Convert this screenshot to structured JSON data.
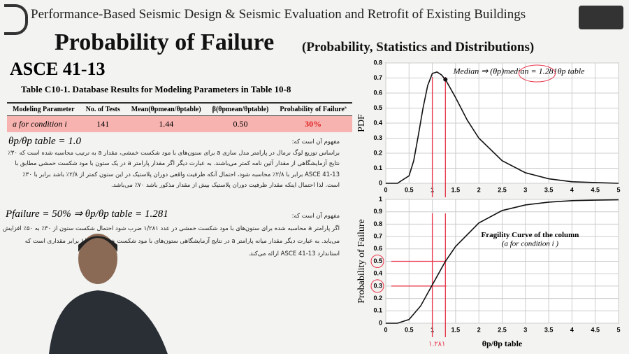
{
  "header": {
    "series_title": "Performance-Based Seismic Design & Seismic Evaluation and Retrofit of Existing Buildings",
    "title": "Probability of Failure",
    "subtitle": "(Probability, Statistics and Distributions)",
    "standard": "ASCE 41-13"
  },
  "table": {
    "caption": "Table C10-1. Database Results for Modeling Parameters in Table 10-8",
    "columns": [
      "Modeling Parameter",
      "No. of Tests",
      "Mean(θpmean/θptable)",
      "β(θpmean/θptable)",
      "Probability of Failureª"
    ],
    "rows": [
      [
        "a for condition i",
        "141",
        "1.44",
        "0.50",
        "30%"
      ]
    ]
  },
  "text": {
    "eq1": "θp/θp table = 1.0",
    "para1": [
      "مفهوم آن است که:",
      "براساس توزیع لوگ نرمال در پارامتر مدل سازی a برای ستون‌های با مود شکست خمشی، مقدار a به ترتیب محاسبه شده است که ۳۰٪",
      "نتایج آزمایشگاهی از مقدار آئین نامه کمتر می‌باشند. به عبارت دیگر اگر مقدار پارامتر a در یک ستون با مود شکست خمشی مطابق با",
      "ASCE 41-13 برابر با ۲/۸٪ محاسبه شود، احتمال آنکه ظرفیت واقعی دوران پلاستیک در این ستون کمتر از ۲/۸٪ باشد برابر با ۳۰٪",
      "است. لذا احتمال اینکه مقدار ظرفیت دوران پلاستیک بیش از مقدار مذکور باشد ۷۰٪ می‌باشد."
    ],
    "eq2": "Pfailure = 50% ⇒ θp/θp table = 1.281",
    "para2": [
      "مفهوم آن است که:",
      "اگر پارامتر a محاسبه شده برای ستون‌های با مود شکست خمشی در عدد ۱/۲۸۱ ضرب شود احتمال شکست ستون از ۳۰٪ به ۵۰٪ افزایش",
      "می‌یابد. به عبارت دیگر مقدار میانه پارامتر a در نتایج آزمایشگاهی ستون‌های با مود شکست خمشی ۱/۲۸۱ برابر مقداری است که",
      "استاندارد ASCE 41-13 ارائه می‌کند."
    ]
  },
  "chart_data": [
    {
      "type": "line",
      "ylabel": "PDF",
      "color": "#111111",
      "annotation": "Median ⇒ (θp)median = 1.281θp table",
      "x": [
        0,
        0.25,
        0.5,
        0.6,
        0.7,
        0.8,
        0.9,
        1.0,
        1.1,
        1.2,
        1.3,
        1.5,
        1.75,
        2,
        2.5,
        3,
        3.5,
        4,
        4.5,
        5
      ],
      "values": [
        0,
        0,
        0.05,
        0.15,
        0.32,
        0.5,
        0.65,
        0.73,
        0.74,
        0.72,
        0.68,
        0.57,
        0.42,
        0.3,
        0.15,
        0.07,
        0.03,
        0.01,
        0.005,
        0
      ],
      "marker": {
        "x": 1.281,
        "y": 0.69
      },
      "reference_x": [
        1,
        1.281
      ],
      "xlim": [
        0,
        5
      ],
      "ylim": [
        0,
        0.8
      ],
      "xticks": [
        0,
        0.5,
        1,
        1.5,
        2,
        2.5,
        3,
        3.5,
        4,
        4.5,
        5
      ],
      "yticks": [
        0,
        0.1,
        0.2,
        0.3,
        0.4,
        0.5,
        0.6,
        0.7,
        0.8
      ],
      "grid": true
    },
    {
      "type": "line",
      "ylabel": "Probability of Failure",
      "xlabel": "θp/θp table",
      "color": "#111111",
      "annotation": "Fragility Curve of the column",
      "annotation2": "(a for condition i )",
      "note": "۱.۲۸۱",
      "x": [
        0,
        0.25,
        0.5,
        0.75,
        1,
        1.281,
        1.5,
        2,
        2.5,
        3,
        3.5,
        4,
        4.5,
        5
      ],
      "values": [
        0,
        0,
        0.03,
        0.14,
        0.31,
        0.5,
        0.62,
        0.81,
        0.91,
        0.955,
        0.978,
        0.99,
        0.994,
        0.997
      ],
      "reference_x": [
        1,
        1.281
      ],
      "reference_y": [
        0.3,
        0.5
      ],
      "xlim": [
        0,
        5
      ],
      "ylim": [
        0,
        1
      ],
      "xticks": [
        0,
        0.5,
        1,
        1.5,
        2,
        2.5,
        3,
        3.5,
        4,
        4.5,
        5
      ],
      "yticks": [
        0,
        0.1,
        0.2,
        0.3,
        0.4,
        0.5,
        0.6,
        0.7,
        0.8,
        0.9,
        1
      ],
      "grid": true
    }
  ]
}
